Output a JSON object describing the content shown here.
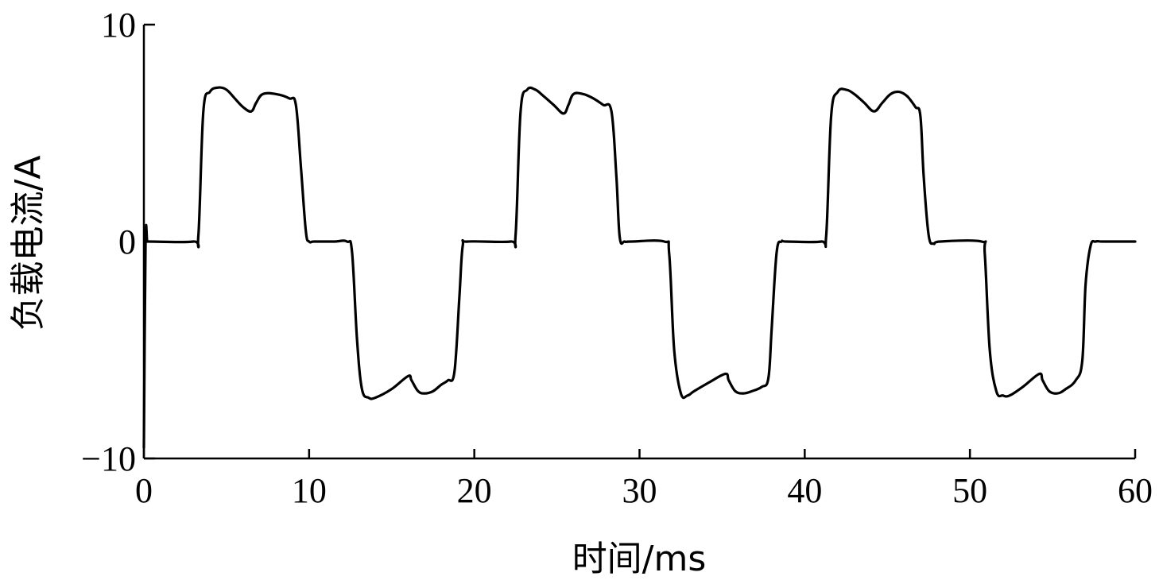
{
  "chart_data": {
    "type": "line",
    "xlabel": "时间/ms",
    "ylabel": "负载电流/A",
    "xlim": [
      0,
      60
    ],
    "ylim": [
      -10,
      10
    ],
    "xticks": [
      "0",
      "10",
      "20",
      "30",
      "40",
      "50",
      "60"
    ],
    "yticks": [
      "10",
      "0",
      "−10"
    ],
    "grid": false,
    "series": [
      {
        "color": "#000000",
        "x": [
          0,
          0.1,
          0.2,
          0.3,
          3.0,
          3.3,
          3.6,
          4.0,
          4.5,
          5.0,
          5.5,
          6.0,
          6.5,
          6.8,
          7.2,
          8.0,
          8.8,
          9.2,
          9.5,
          9.8,
          10.0,
          10.3,
          11.5,
          12.3,
          12.6,
          12.9,
          13.2,
          13.6,
          14.0,
          15.0,
          16.0,
          16.2,
          16.6,
          17.0,
          17.5,
          18.0,
          18.4,
          18.8,
          19.1,
          19.3,
          19.6,
          22.2,
          22.5,
          22.8,
          23.2,
          23.7,
          24.2,
          24.8,
          25.4,
          25.7,
          26.0,
          26.6,
          27.2,
          27.8,
          28.3,
          28.6,
          28.8,
          29.1,
          29.5,
          31.5,
          31.8,
          32.1,
          32.5,
          32.9,
          33.3,
          34.2,
          35.2,
          35.4,
          35.8,
          36.3,
          36.8,
          37.4,
          37.8,
          38.0,
          38.3,
          38.6,
          38.9,
          41.0,
          41.3,
          41.6,
          42.0,
          42.5,
          43.0,
          43.6,
          44.2,
          44.7,
          45.2,
          45.7,
          46.2,
          46.7,
          47.0,
          47.2,
          47.5,
          47.8,
          48.2,
          50.7,
          50.9,
          51.2,
          51.6,
          52.0,
          52.4,
          53.2,
          54.2,
          54.4,
          54.8,
          55.3,
          55.8,
          56.4,
          56.8,
          57.0,
          57.3,
          57.6,
          58.0,
          59.0,
          60.0
        ],
        "y": [
          -9.5,
          0,
          0,
          0,
          0,
          0.3,
          6.0,
          6.9,
          7.1,
          7.0,
          6.6,
          6.2,
          6.0,
          6.4,
          6.8,
          6.8,
          6.6,
          6.3,
          3.5,
          0.5,
          0,
          0,
          0,
          0,
          -0.5,
          -4.5,
          -6.8,
          -7.2,
          -7.2,
          -6.8,
          -6.2,
          -6.4,
          -6.9,
          -7.0,
          -6.9,
          -6.6,
          -6.4,
          -6.0,
          -2.5,
          -0.2,
          0,
          0,
          0.3,
          6.0,
          7.0,
          7.0,
          6.7,
          6.3,
          5.9,
          6.3,
          6.8,
          6.8,
          6.6,
          6.3,
          6.0,
          3.0,
          0.2,
          0,
          0,
          0,
          -0.6,
          -5.0,
          -7.0,
          -7.1,
          -6.9,
          -6.5,
          -6.1,
          -6.4,
          -6.9,
          -7.0,
          -6.9,
          -6.7,
          -6.3,
          -4.0,
          -0.5,
          0,
          0,
          0,
          0.3,
          5.8,
          6.9,
          7.0,
          6.8,
          6.4,
          6.0,
          6.4,
          6.8,
          6.9,
          6.7,
          6.2,
          5.8,
          3.0,
          0.3,
          -0.1,
          0,
          0,
          -0.6,
          -5.0,
          -6.9,
          -7.1,
          -7.1,
          -6.7,
          -6.1,
          -6.4,
          -6.9,
          -7.0,
          -6.8,
          -6.4,
          -5.5,
          -2.0,
          -0.2,
          0,
          0,
          0,
          0
        ]
      }
    ]
  }
}
